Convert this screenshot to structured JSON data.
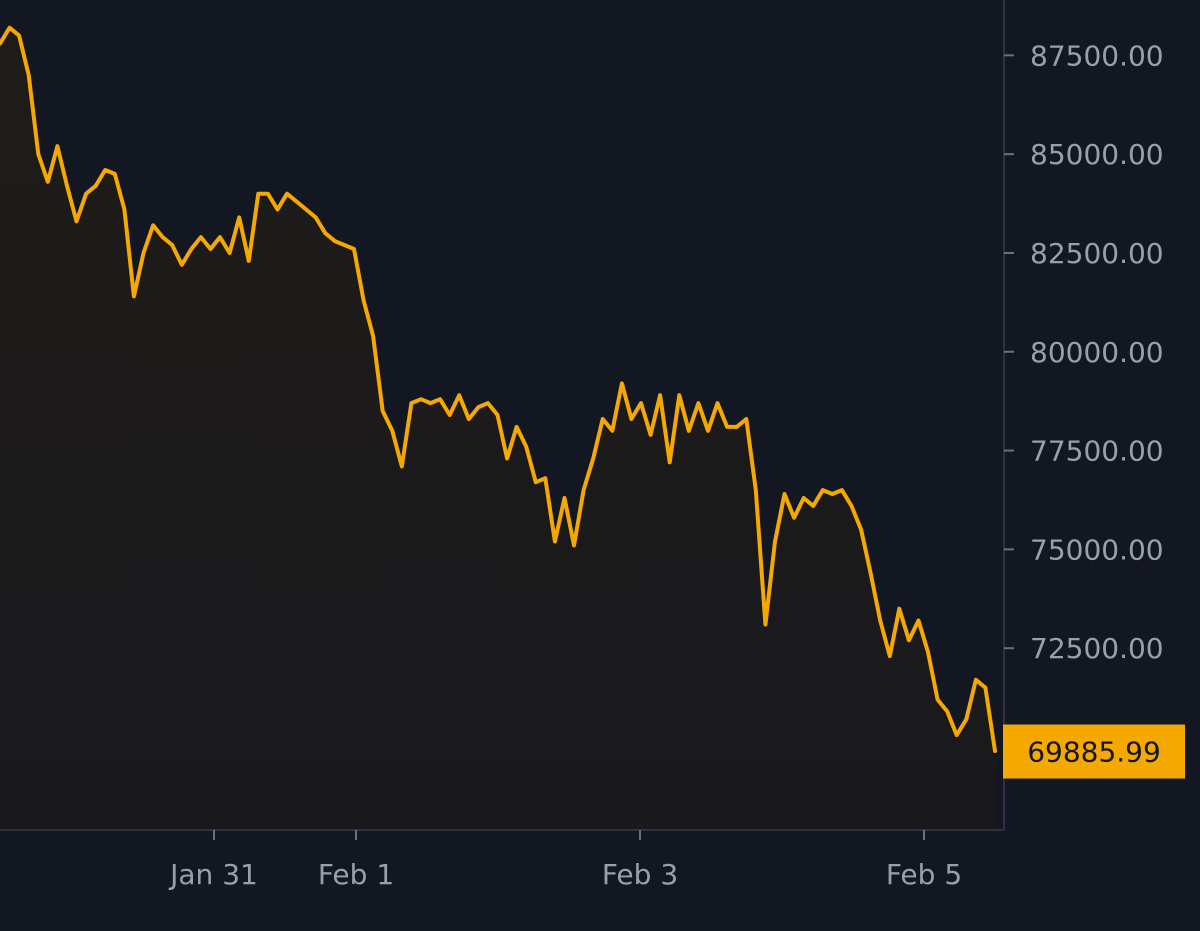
{
  "chart_data": {
    "type": "area",
    "title": "",
    "xlabel": "",
    "ylabel": "",
    "x_tick_labels": [
      "Jan 31",
      "Feb 1",
      "Feb 3",
      "Feb 5"
    ],
    "y_tick_labels": [
      "87500.00",
      "85000.00",
      "82500.00",
      "80000.00",
      "77500.00",
      "75000.00",
      "72500.00"
    ],
    "ylim": [
      67900,
      88900
    ],
    "grid": false,
    "current_price": 69885.99,
    "current_price_label": "69885.99",
    "series": [
      {
        "values": [
          87800,
          88200,
          88000,
          87000,
          85000,
          84300,
          85200,
          84200,
          83300,
          84000,
          84200,
          84600,
          84500,
          83600,
          81400,
          82500,
          83200,
          82900,
          82700,
          82200,
          82600,
          82900,
          82600,
          82900,
          82500,
          83400,
          82300,
          84000,
          84000,
          83600,
          84000,
          83800,
          83600,
          83400,
          83000,
          82800,
          82700,
          82600,
          81300,
          80400,
          78500,
          78000,
          77100,
          78700,
          78800,
          78700,
          78800,
          78400,
          78900,
          78300,
          78600,
          78700,
          78400,
          77300,
          78100,
          77600,
          76700,
          76800,
          75200,
          76300,
          75100,
          76500,
          77300,
          78300,
          78000,
          79200,
          78300,
          78700,
          77900,
          78900,
          77200,
          78900,
          78000,
          78700,
          78000,
          78700,
          78100,
          78100,
          78300,
          76500,
          73100,
          75200,
          76400,
          75800,
          76300,
          76100,
          76500,
          76400,
          76500,
          76100,
          75500,
          74400,
          73200,
          72300,
          73500,
          72700,
          73200,
          72400,
          71200,
          70900,
          70300,
          70700,
          71700,
          71500,
          69900
        ]
      }
    ]
  }
}
